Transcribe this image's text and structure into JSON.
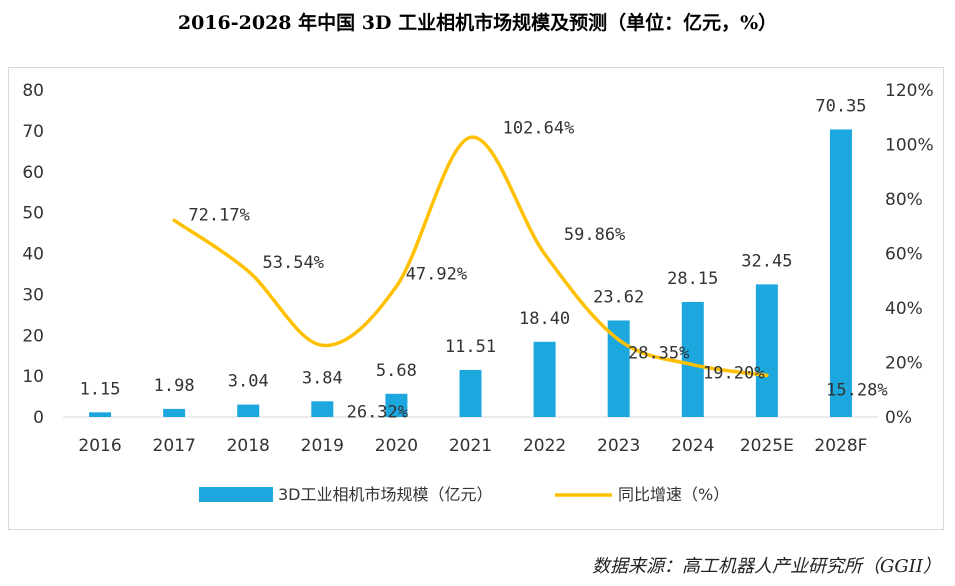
{
  "title": "2016-2028 年中国 3D 工业相机市场规模及预测（单位：亿元，%）",
  "source": "数据来源：高工机器人产业研究所（GGII）",
  "colors": {
    "bar": "#1ca7df",
    "line": "#ffc000",
    "grid": "#d9d9d9",
    "text": "#333333"
  },
  "chart_data": {
    "type": "bar+line",
    "categories": [
      "2016",
      "2017",
      "2018",
      "2019",
      "2020",
      "2021",
      "2022",
      "2023",
      "2024",
      "2025E",
      "2028F"
    ],
    "series": [
      {
        "name": "3D工业相机市场规模（亿元）",
        "type": "bar",
        "axis": "left",
        "values": [
          1.15,
          1.98,
          3.04,
          3.84,
          5.68,
          11.51,
          18.4,
          23.62,
          28.15,
          32.45,
          70.35
        ],
        "labels": [
          "1.15",
          "1.98",
          "3.04",
          "3.84",
          "5.68",
          "11.51",
          "18.40",
          "23.62",
          "28.15",
          "32.45",
          "70.35"
        ]
      },
      {
        "name": "同比增速（%）",
        "type": "line",
        "axis": "right",
        "values": [
          null,
          72.17,
          53.54,
          26.32,
          47.92,
          102.64,
          59.86,
          28.35,
          19.2,
          15.28,
          null
        ],
        "labels": [
          "",
          "72.17%",
          "53.54%",
          "26.32%",
          "47.92%",
          "102.64%",
          "59.86%",
          "28.35%",
          "19.20%",
          "15.28%",
          ""
        ]
      }
    ],
    "y_left": {
      "min": 0,
      "max": 80,
      "ticks": [
        "0",
        "10",
        "20",
        "30",
        "40",
        "50",
        "60",
        "70",
        "80"
      ]
    },
    "y_right": {
      "min": 0,
      "max": 120,
      "ticks": [
        "0%",
        "20%",
        "40%",
        "60%",
        "80%",
        "100%",
        "120%"
      ]
    },
    "legend": {
      "position": "bottom",
      "items": [
        "3D工业相机市场规模（亿元）",
        "同比增速（%）"
      ]
    },
    "grid": false
  }
}
